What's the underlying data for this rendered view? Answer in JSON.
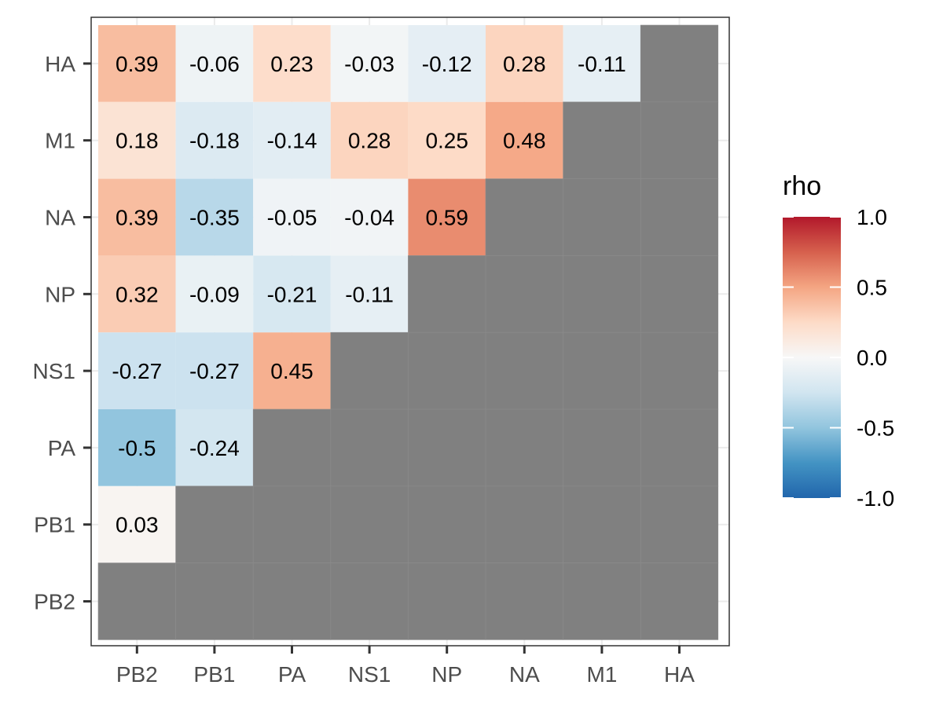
{
  "chart_data": {
    "type": "heatmap",
    "x_categories": [
      "PB2",
      "PB1",
      "PA",
      "NS1",
      "NP",
      "NA",
      "M1",
      "HA"
    ],
    "y_categories": [
      "HA",
      "M1",
      "NA",
      "NP",
      "NS1",
      "PA",
      "PB1",
      "PB2"
    ],
    "values": [
      [
        0.39,
        -0.06,
        0.23,
        -0.03,
        -0.12,
        0.28,
        -0.11,
        null
      ],
      [
        0.18,
        -0.18,
        -0.14,
        0.28,
        0.25,
        0.48,
        null,
        null
      ],
      [
        0.39,
        -0.35,
        -0.05,
        -0.04,
        0.59,
        null,
        null,
        null
      ],
      [
        0.32,
        -0.09,
        -0.21,
        -0.11,
        null,
        null,
        null,
        null
      ],
      [
        -0.27,
        -0.27,
        0.45,
        null,
        null,
        null,
        null,
        null
      ],
      [
        -0.5,
        -0.24,
        null,
        null,
        null,
        null,
        null,
        null
      ],
      [
        0.03,
        null,
        null,
        null,
        null,
        null,
        null,
        null
      ],
      [
        null,
        null,
        null,
        null,
        null,
        null,
        null,
        null
      ]
    ],
    "labels": [
      [
        "0.39",
        "-0.06",
        "0.23",
        "-0.03",
        "-0.12",
        "0.28",
        "-0.11",
        ""
      ],
      [
        "0.18",
        "-0.18",
        "-0.14",
        "0.28",
        "0.25",
        "0.48",
        "",
        ""
      ],
      [
        "0.39",
        "-0.35",
        "-0.05",
        "-0.04",
        "0.59",
        "",
        "",
        ""
      ],
      [
        "0.32",
        "-0.09",
        "-0.21",
        "-0.11",
        "",
        "",
        "",
        ""
      ],
      [
        "-0.27",
        "-0.27",
        "0.45",
        "",
        "",
        "",
        "",
        ""
      ],
      [
        "-0.5",
        "-0.24",
        "",
        "",
        "",
        "",
        "",
        ""
      ],
      [
        "0.03",
        "",
        "",
        "",
        "",
        "",
        "",
        ""
      ],
      [
        "",
        "",
        "",
        "",
        "",
        "",
        "",
        ""
      ]
    ],
    "legend": {
      "title": "rho",
      "placement": "right",
      "range": [
        -1.0,
        1.0
      ],
      "ticks": [
        1.0,
        0.5,
        0.0,
        -0.5,
        -1.0
      ],
      "tick_labels": [
        "1.0",
        "0.5",
        "0.0",
        "-0.5",
        "-1.0"
      ]
    },
    "colors": {
      "low": "#2166ac",
      "mid": "#f7f7f7",
      "high": "#b2182b",
      "na": "#808080"
    },
    "grid": true
  }
}
